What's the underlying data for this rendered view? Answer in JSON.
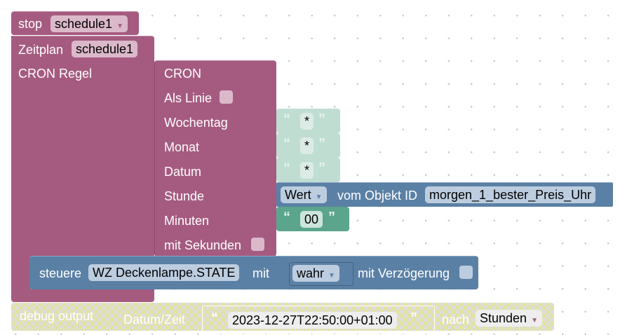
{
  "colors": {
    "timer_block": "#a55b80",
    "object_block": "#5b80a5",
    "text_block": "#5ba58c"
  },
  "stop_block": {
    "label": "stop",
    "schedule": "schedule1"
  },
  "schedule_block": {
    "label": "Zeitplan",
    "name": "schedule1",
    "cron_label": "CRON Regel"
  },
  "cron_block": {
    "title": "CRON",
    "as_line": "Als Linie",
    "weekday": "Wochentag",
    "month": "Monat",
    "date": "Datum",
    "hour": "Stunde",
    "minutes": "Minuten",
    "with_seconds": "mit Sekunden"
  },
  "text_values": {
    "weekday": "*",
    "month": "*",
    "date": "*",
    "minutes": "00",
    "open_quote": "“",
    "close_quote": "”"
  },
  "hour_value": {
    "mode": "Wert",
    "label": "vom Objekt ID",
    "object_id": "morgen_1_bester_Preis_Uhr"
  },
  "control_block": {
    "label": "steuere",
    "object": "WZ Deckenlampe.STATE",
    "with": "mit",
    "value": "wahr",
    "delay": "mit Verzögerung"
  },
  "debug_block": {
    "label": "debug output",
    "datetime_label": "Datum/Zeit",
    "datetime_value": "2023-12-27T22:50:00+01:00",
    "after": "nach",
    "unit": "Stunden"
  }
}
